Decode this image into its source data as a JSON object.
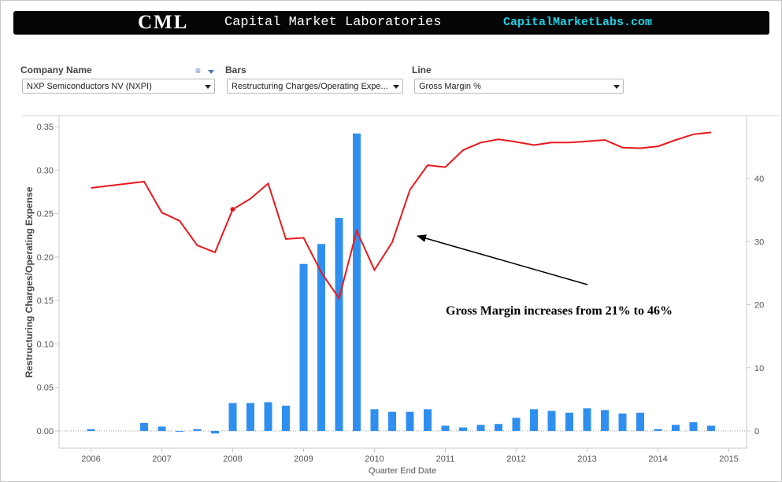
{
  "banner": {
    "logo": "CML",
    "name": "Capital Market Laboratories",
    "site": "CapitalMarketLabs.com"
  },
  "filters": {
    "company": {
      "label": "Company Name",
      "value": "NXP Semiconductors NV (NXPI)"
    },
    "bars": {
      "label": "Bars",
      "value": "Restructuring Charges/Operating Expe..."
    },
    "line": {
      "label": "Line",
      "value": "Gross Margin %"
    }
  },
  "icons": {
    "filter_menu": "list-menu-icon",
    "dropdown": "chevron-down-icon"
  },
  "colors": {
    "bars": "#2f8ff0",
    "line": "#e8191e",
    "annotation": "#000000"
  },
  "chart_data": {
    "type": "bar",
    "xlabel": "Quarter End Date",
    "ylabel": "Restructuring Charges/Operating Expense",
    "ylim": [
      0,
      0.36
    ],
    "y2lim": [
      0,
      48
    ],
    "xlim": [
      2005.55,
      2015.25
    ],
    "xticks": [
      "2006",
      "2007",
      "2008",
      "2009",
      "2010",
      "2011",
      "2012",
      "2013",
      "2014",
      "2015"
    ],
    "yticks": [
      "0.00",
      "0.05",
      "0.10",
      "0.15",
      "0.20",
      "0.25",
      "0.30",
      "0.35"
    ],
    "y2ticks": [
      "0",
      "10",
      "20",
      "30",
      "40"
    ],
    "grid": false,
    "series": [
      {
        "kind": "bar",
        "axis": "left",
        "x": [
          2006.0,
          2006.75,
          2007.0,
          2007.25,
          2007.5,
          2007.75,
          2008.0,
          2008.25,
          2008.5,
          2008.75,
          2009.0,
          2009.25,
          2009.5,
          2009.75,
          2010.0,
          2010.25,
          2010.5,
          2010.75,
          2011.0,
          2011.25,
          2011.5,
          2011.75,
          2012.0,
          2012.25,
          2012.5,
          2012.75,
          2013.0,
          2013.25,
          2013.5,
          2013.75,
          2014.0,
          2014.25,
          2014.5,
          2014.75
        ],
        "values": [
          0.002,
          0.009,
          0.005,
          -0.001,
          0.002,
          -0.003,
          0.032,
          0.032,
          0.033,
          0.029,
          0.192,
          0.215,
          0.245,
          0.342,
          0.025,
          0.022,
          0.022,
          0.025,
          0.006,
          0.004,
          0.007,
          0.008,
          0.015,
          0.025,
          0.023,
          0.021,
          0.026,
          0.024,
          0.02,
          0.021,
          0.002,
          0.007,
          0.01,
          0.006
        ]
      },
      {
        "kind": "line",
        "axis": "right",
        "x": [
          2006.0,
          2006.75,
          2007.0,
          2007.25,
          2007.5,
          2007.75,
          2008.0,
          2008.25,
          2008.5,
          2008.75,
          2009.0,
          2009.25,
          2009.5,
          2009.75,
          2010.0,
          2010.25,
          2010.5,
          2010.75,
          2011.0,
          2011.25,
          2011.5,
          2011.75,
          2012.0,
          2012.25,
          2012.5,
          2012.75,
          2013.0,
          2013.25,
          2013.5,
          2013.75,
          2014.0,
          2014.25,
          2014.5,
          2014.75
        ],
        "values": [
          38.5,
          39.5,
          34.6,
          33.3,
          29.4,
          28.3,
          35.1,
          36.8,
          39.2,
          30.4,
          30.6,
          25.1,
          21.0,
          31.7,
          25.5,
          29.9,
          38.2,
          42.1,
          41.8,
          44.5,
          45.7,
          46.2,
          45.8,
          45.3,
          45.7,
          45.7,
          45.9,
          46.1,
          44.9,
          44.8,
          45.1,
          46.1,
          47.0,
          47.3
        ]
      }
    ],
    "annotation": {
      "text": "Gross Margin increases from 21% to 46%"
    }
  }
}
